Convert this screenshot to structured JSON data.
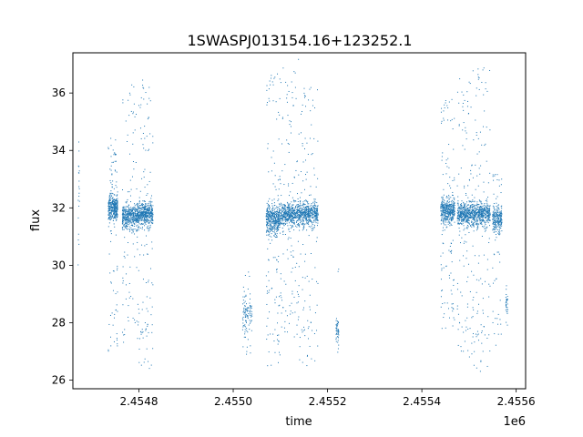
{
  "chart_data": {
    "type": "scatter",
    "title": "1SWASPJ013154.16+123252.1",
    "xlabel": "time",
    "ylabel": "flux",
    "x_offset_label": "1e6",
    "xlim": [
      2454660,
      2455620
    ],
    "ylim": [
      25.7,
      37.4
    ],
    "x_ticks": [
      2454800,
      2455000,
      2455200,
      2455400,
      2455600
    ],
    "x_tick_labels": [
      "2.4548",
      "2.4550",
      "2.4552",
      "2.4554",
      "2.4556"
    ],
    "y_ticks": [
      26,
      28,
      30,
      32,
      34,
      36
    ],
    "y_tick_labels": [
      "26",
      "28",
      "30",
      "32",
      "34",
      "36"
    ],
    "grid": false,
    "legend": "none",
    "marker_color": "#1f77b4",
    "series": [
      {
        "values_note": "",
        "clusters": [
          {
            "x_range": [
              2454670,
              2454674
            ],
            "y_center": 32.8,
            "spread": 2.4,
            "outlier_low": 30.0,
            "outlier_high": 37.2,
            "count": 20
          },
          {
            "x_range": [
              2454735,
              2454755
            ],
            "y_center": 32.0,
            "spread": 0.5,
            "outlier_low": 27.0,
            "outlier_high": 34.5,
            "count": 420
          },
          {
            "x_range": [
              2454765,
              2454800
            ],
            "y_center": 31.7,
            "spread": 0.5,
            "outlier_low": 27.3,
            "outlier_high": 36.5,
            "count": 520
          },
          {
            "x_range": [
              2454800,
              2454830
            ],
            "y_center": 31.8,
            "spread": 0.5,
            "outlier_low": 26.4,
            "outlier_high": 36.6,
            "count": 480
          },
          {
            "x_range": [
              2455020,
              2455040
            ],
            "y_center": 28.3,
            "spread": 0.7,
            "outlier_low": 26.9,
            "outlier_high": 29.8,
            "count": 110
          },
          {
            "x_range": [
              2455070,
              2455100
            ],
            "y_center": 31.6,
            "spread": 0.6,
            "outlier_low": 26.5,
            "outlier_high": 36.7,
            "count": 500
          },
          {
            "x_range": [
              2455100,
              2455140
            ],
            "y_center": 31.8,
            "spread": 0.5,
            "outlier_low": 27.5,
            "outlier_high": 37.2,
            "count": 560
          },
          {
            "x_range": [
              2455140,
              2455180
            ],
            "y_center": 31.8,
            "spread": 0.5,
            "outlier_low": 26.5,
            "outlier_high": 36.3,
            "count": 520
          },
          {
            "x_range": [
              2455218,
              2455224
            ],
            "y_center": 27.8,
            "spread": 0.5,
            "outlier_low": 26.7,
            "outlier_high": 30.7,
            "count": 50
          },
          {
            "x_range": [
              2455440,
              2455470
            ],
            "y_center": 31.9,
            "spread": 0.5,
            "outlier_low": 27.8,
            "outlier_high": 35.8,
            "count": 480
          },
          {
            "x_range": [
              2455475,
              2455510
            ],
            "y_center": 31.8,
            "spread": 0.5,
            "outlier_low": 26.8,
            "outlier_high": 36.8,
            "count": 520
          },
          {
            "x_range": [
              2455510,
              2455545
            ],
            "y_center": 31.8,
            "spread": 0.5,
            "outlier_low": 26.3,
            "outlier_high": 37.0,
            "count": 480
          },
          {
            "x_range": [
              2455550,
              2455570
            ],
            "y_center": 31.6,
            "spread": 0.5,
            "outlier_low": 27.2,
            "outlier_high": 33.3,
            "count": 260
          },
          {
            "x_range": [
              2455578,
              2455582
            ],
            "y_center": 28.6,
            "spread": 0.5,
            "outlier_low": 27.9,
            "outlier_high": 29.3,
            "count": 30
          }
        ]
      }
    ]
  }
}
